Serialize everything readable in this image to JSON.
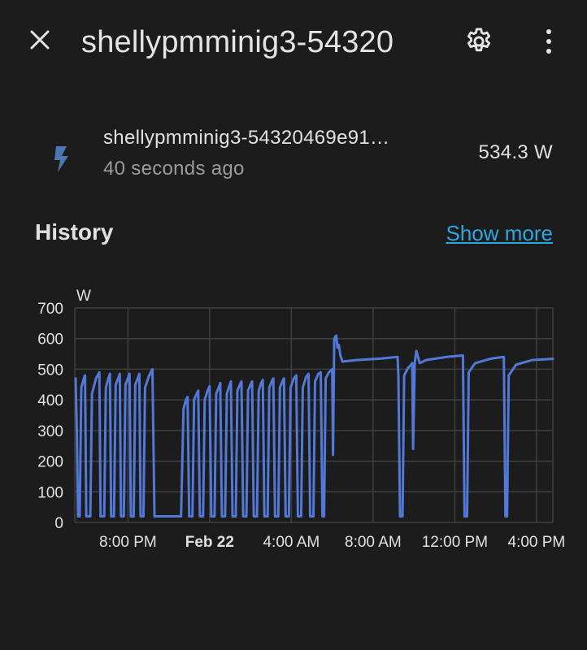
{
  "header": {
    "title": "shellypmminig3-54320",
    "close_icon": "close-icon",
    "settings_icon": "gear-icon",
    "more_icon": "more-vertical-icon"
  },
  "entity": {
    "icon": "flash-icon",
    "name": "shellypmminig3-54320469e91…",
    "last_updated": "40 seconds ago",
    "value": "534.3 W"
  },
  "history": {
    "title": "History",
    "show_more_label": "Show more"
  },
  "colors": {
    "background": "#1c1c1c",
    "line": "#5278d8",
    "link": "#2ea7e0",
    "icon": "#4a78b3"
  },
  "chart_data": {
    "type": "line",
    "ylabel": "W",
    "ylim": [
      0,
      700
    ],
    "yticks": [
      0,
      100,
      200,
      300,
      400,
      500,
      600,
      700
    ],
    "grid": true,
    "x_unit": "hours",
    "xlim": [
      18.7,
      30.4
    ],
    "xticks": [
      {
        "t": 20,
        "label": "8:00 PM",
        "bold": false
      },
      {
        "t": 22,
        "label": "Feb 22",
        "bold": true
      },
      {
        "t": 24,
        "label": "4:00 AM",
        "bold": false
      },
      {
        "t": 26,
        "label": "8:00 AM",
        "bold": false
      },
      {
        "t": 28,
        "label": "12:00 PM",
        "bold": false
      },
      {
        "t": 30,
        "label": "4:00 PM",
        "bold": false
      }
    ],
    "series": [
      {
        "values": [
          [
            18.72,
            470
          ],
          [
            18.75,
            300
          ],
          [
            18.78,
            20
          ],
          [
            18.82,
            20
          ],
          [
            18.86,
            440
          ],
          [
            18.92,
            470
          ],
          [
            18.95,
            480
          ],
          [
            18.98,
            20
          ],
          [
            19.08,
            20
          ],
          [
            19.12,
            420
          ],
          [
            19.22,
            470
          ],
          [
            19.3,
            490
          ],
          [
            19.33,
            20
          ],
          [
            19.42,
            20
          ],
          [
            19.46,
            440
          ],
          [
            19.52,
            470
          ],
          [
            19.56,
            485
          ],
          [
            19.59,
            20
          ],
          [
            19.66,
            20
          ],
          [
            19.7,
            450
          ],
          [
            19.76,
            470
          ],
          [
            19.8,
            485
          ],
          [
            19.83,
            20
          ],
          [
            19.9,
            20
          ],
          [
            19.94,
            450
          ],
          [
            20.0,
            470
          ],
          [
            20.04,
            485
          ],
          [
            20.07,
            20
          ],
          [
            20.14,
            20
          ],
          [
            20.18,
            450
          ],
          [
            20.24,
            470
          ],
          [
            20.28,
            485
          ],
          [
            20.31,
            20
          ],
          [
            20.38,
            20
          ],
          [
            20.42,
            440
          ],
          [
            20.52,
            480
          ],
          [
            20.6,
            500
          ],
          [
            20.65,
            20
          ],
          [
            21.3,
            20
          ],
          [
            21.36,
            370
          ],
          [
            21.42,
            400
          ],
          [
            21.46,
            410
          ],
          [
            21.5,
            20
          ],
          [
            21.58,
            20
          ],
          [
            21.62,
            400
          ],
          [
            21.68,
            420
          ],
          [
            21.72,
            430
          ],
          [
            21.76,
            20
          ],
          [
            21.84,
            20
          ],
          [
            21.88,
            400
          ],
          [
            21.95,
            430
          ],
          [
            22.0,
            445
          ],
          [
            22.04,
            20
          ],
          [
            22.12,
            20
          ],
          [
            22.16,
            420
          ],
          [
            22.22,
            440
          ],
          [
            22.26,
            455
          ],
          [
            22.3,
            20
          ],
          [
            22.38,
            20
          ],
          [
            22.42,
            420
          ],
          [
            22.48,
            445
          ],
          [
            22.52,
            460
          ],
          [
            22.56,
            20
          ],
          [
            22.64,
            20
          ],
          [
            22.68,
            430
          ],
          [
            22.74,
            450
          ],
          [
            22.78,
            460
          ],
          [
            22.82,
            20
          ],
          [
            22.9,
            20
          ],
          [
            22.94,
            430
          ],
          [
            23.0,
            450
          ],
          [
            23.04,
            460
          ],
          [
            23.08,
            20
          ],
          [
            23.16,
            20
          ],
          [
            23.2,
            430
          ],
          [
            23.26,
            455
          ],
          [
            23.3,
            465
          ],
          [
            23.34,
            20
          ],
          [
            23.42,
            20
          ],
          [
            23.46,
            440
          ],
          [
            23.52,
            460
          ],
          [
            23.56,
            470
          ],
          [
            23.6,
            20
          ],
          [
            23.68,
            20
          ],
          [
            23.72,
            440
          ],
          [
            23.78,
            460
          ],
          [
            23.82,
            470
          ],
          [
            23.86,
            20
          ],
          [
            23.94,
            20
          ],
          [
            23.98,
            440
          ],
          [
            24.06,
            470
          ],
          [
            24.12,
            480
          ],
          [
            24.16,
            20
          ],
          [
            24.24,
            20
          ],
          [
            24.28,
            440
          ],
          [
            24.36,
            475
          ],
          [
            24.42,
            485
          ],
          [
            24.46,
            20
          ],
          [
            24.54,
            20
          ],
          [
            24.58,
            460
          ],
          [
            24.66,
            485
          ],
          [
            24.72,
            490
          ],
          [
            24.76,
            20
          ],
          [
            24.8,
            20
          ],
          [
            24.84,
            470
          ],
          [
            24.92,
            490
          ],
          [
            25.0,
            500
          ],
          [
            25.02,
            220
          ],
          [
            25.05,
            600
          ],
          [
            25.1,
            610
          ],
          [
            25.13,
            570
          ],
          [
            25.16,
            580
          ],
          [
            25.2,
            545
          ],
          [
            25.25,
            525
          ],
          [
            25.6,
            530
          ],
          [
            26.2,
            535
          ],
          [
            26.6,
            540
          ],
          [
            26.62,
            480
          ],
          [
            26.66,
            20
          ],
          [
            26.72,
            20
          ],
          [
            26.76,
            480
          ],
          [
            26.86,
            505
          ],
          [
            26.9,
            510
          ],
          [
            26.96,
            520
          ],
          [
            26.98,
            240
          ],
          [
            27.02,
            520
          ],
          [
            27.06,
            560
          ],
          [
            27.1,
            540
          ],
          [
            27.14,
            520
          ],
          [
            27.3,
            530
          ],
          [
            27.8,
            540
          ],
          [
            28.2,
            545
          ],
          [
            28.24,
            20
          ],
          [
            28.3,
            20
          ],
          [
            28.34,
            490
          ],
          [
            28.5,
            520
          ],
          [
            28.9,
            535
          ],
          [
            29.2,
            540
          ],
          [
            29.24,
            20
          ],
          [
            29.28,
            20
          ],
          [
            29.32,
            480
          ],
          [
            29.5,
            515
          ],
          [
            29.9,
            530
          ],
          [
            30.4,
            534
          ]
        ]
      }
    ]
  }
}
